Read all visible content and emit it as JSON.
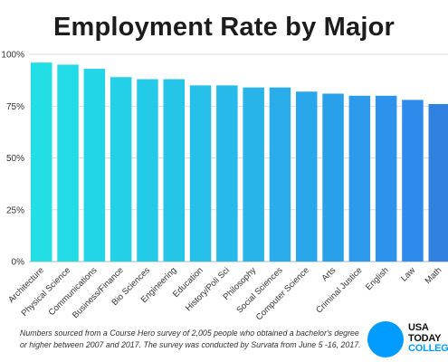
{
  "title": "Employment Rate by Major",
  "footnote": "Numbers sourced from a Course Hero survey of 2,005 people who obtained a bachelor's degree or higher between 2007 and 2017. The survey was conducted by Survata from June 5 -16, 2017.",
  "logo": {
    "line1": "USA",
    "line2": "TODAY",
    "line3": "COLLEGE",
    "circle_color": "#009bff"
  },
  "chart_data": {
    "type": "bar",
    "title": "Employment Rate by Major",
    "xlabel": "",
    "ylabel": "",
    "ylim": [
      0,
      100
    ],
    "yticks": [
      "0%",
      "25%",
      "50%",
      "75%",
      "100%"
    ],
    "grid": true,
    "categories": [
      "Architecture",
      "Physical Science",
      "Communications",
      "Business/Finance",
      "Bio Sciences",
      "Engineering",
      "Education",
      "History/Poli Sci",
      "Philosophy",
      "Social Sciences",
      "Computer Science",
      "Arts",
      "Criminal Justice",
      "English",
      "Law",
      "Math"
    ],
    "values": [
      96,
      95,
      93,
      89,
      88,
      88,
      85,
      85,
      84,
      84,
      82,
      81,
      80,
      80,
      78,
      76
    ],
    "colors": [
      "#22dfe6",
      "#22dbe6",
      "#23d6e7",
      "#24d0e7",
      "#24cbe8",
      "#25c5e8",
      "#26bfe8",
      "#27b9e9",
      "#28b3e9",
      "#29ace9",
      "#2aa6ea",
      "#2ba0ea",
      "#2c99eb",
      "#2d92eb",
      "#2e8beb",
      "#3080e0"
    ]
  }
}
